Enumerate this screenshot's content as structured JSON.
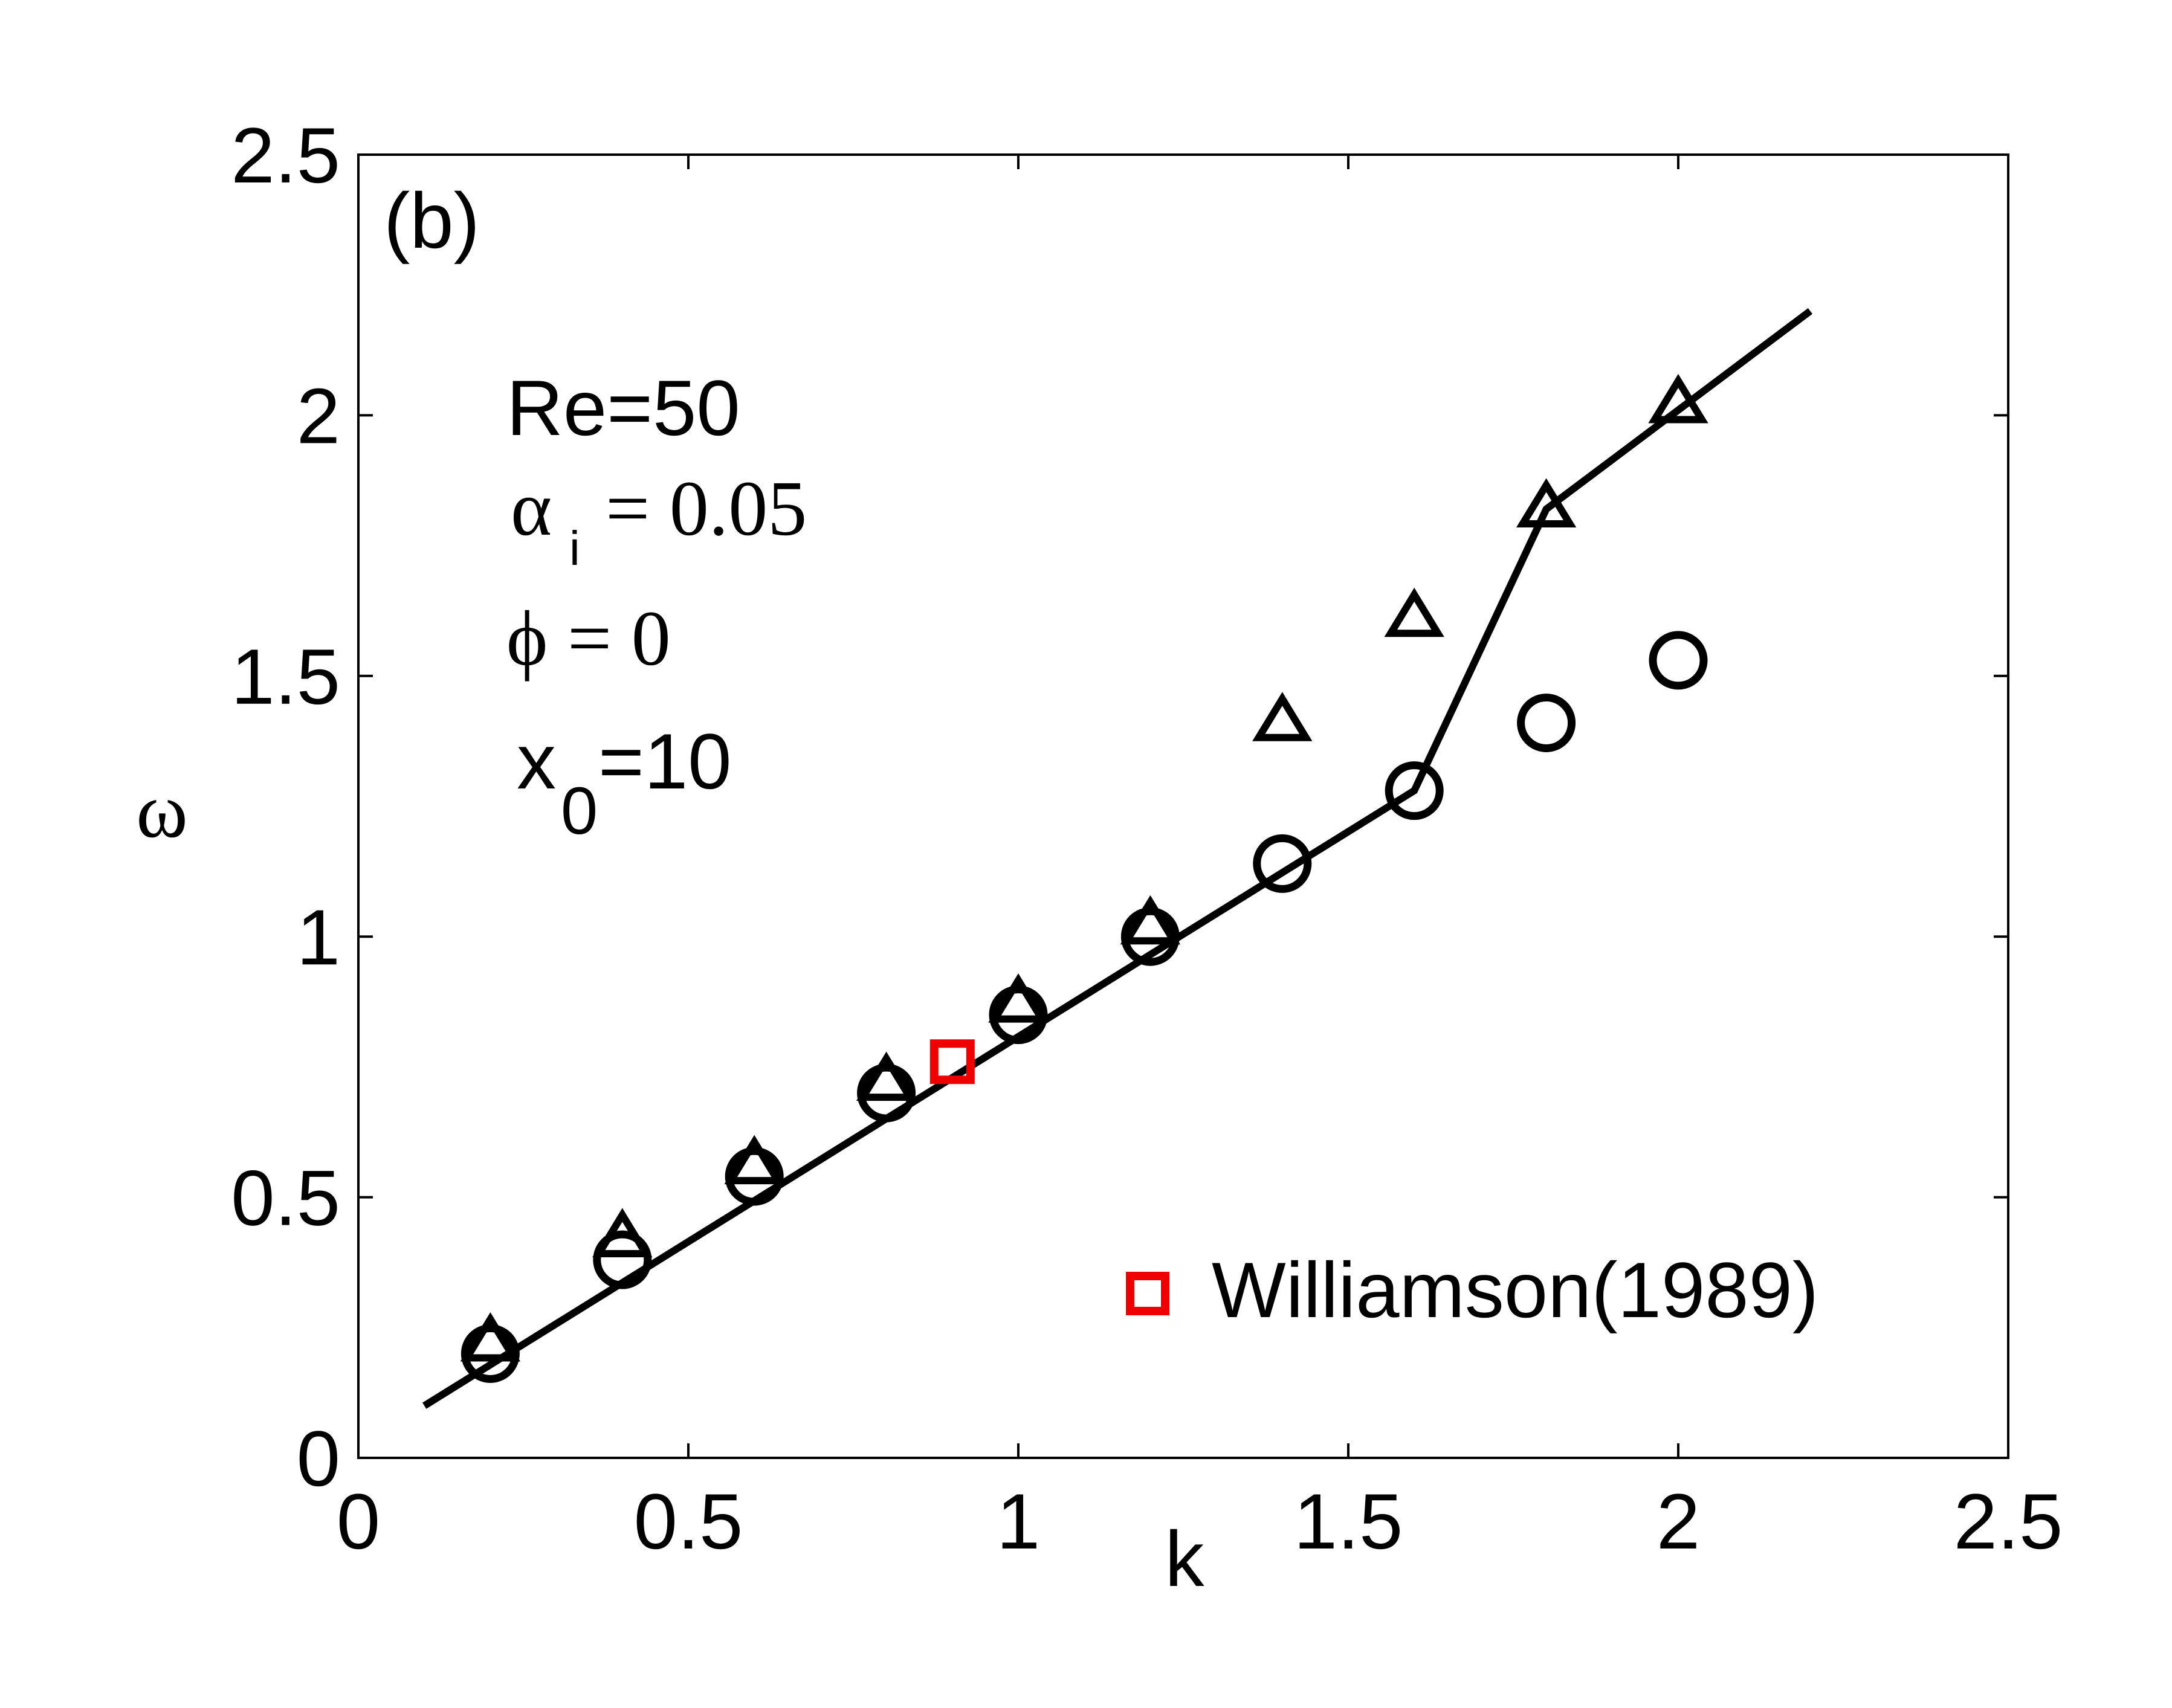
{
  "chart_data": {
    "type": "line",
    "title": "",
    "panel_label": "(b)",
    "xlabel": "k",
    "ylabel": "ω",
    "xlim": [
      0,
      2.5
    ],
    "ylim": [
      0,
      2.5
    ],
    "xticks": [
      {
        "value": 0,
        "label": "0"
      },
      {
        "value": 0.5,
        "label": "0.5"
      },
      {
        "value": 1,
        "label": "1"
      },
      {
        "value": 1.5,
        "label": "1.5"
      },
      {
        "value": 2,
        "label": "2"
      },
      {
        "value": 2.5,
        "label": "2.5"
      }
    ],
    "yticks": [
      {
        "value": 0,
        "label": "0"
      },
      {
        "value": 0.5,
        "label": "0.5"
      },
      {
        "value": 1,
        "label": "1"
      },
      {
        "value": 1.5,
        "label": "1.5"
      },
      {
        "value": 2,
        "label": "2"
      },
      {
        "value": 2.5,
        "label": "2.5"
      }
    ],
    "grid": false,
    "legend_position": "bottom-right",
    "annotations": {
      "re": "Re=50",
      "alpha_symbol": "α",
      "alpha_sub": "i",
      "alpha_value": "= 0.05",
      "phi": "ϕ = 0",
      "x0_symbol": "x",
      "x0_sub": "0",
      "x0_value": "=10"
    },
    "series": [
      {
        "type": "line",
        "color": "#000000",
        "points": [
          [
            0.1,
            0.1
          ],
          [
            1.6,
            1.28
          ],
          [
            1.8,
            1.82
          ],
          [
            2.2,
            2.2
          ]
        ]
      },
      {
        "type": "circle-markers",
        "color": "#000000",
        "points": [
          [
            0.2,
            0.2
          ],
          [
            0.4,
            0.38
          ],
          [
            0.6,
            0.54
          ],
          [
            0.8,
            0.7
          ],
          [
            1.0,
            0.85
          ],
          [
            1.2,
            1.0
          ],
          [
            1.4,
            1.14
          ],
          [
            1.6,
            1.28
          ],
          [
            1.8,
            1.41
          ],
          [
            2.0,
            1.53
          ]
        ]
      },
      {
        "type": "triangle-markers",
        "color": "#000000",
        "points": [
          [
            0.2,
            0.22
          ],
          [
            0.4,
            0.42
          ],
          [
            0.6,
            0.56
          ],
          [
            0.8,
            0.72
          ],
          [
            1.0,
            0.87
          ],
          [
            1.2,
            1.02
          ],
          [
            1.4,
            1.41
          ],
          [
            1.6,
            1.61
          ],
          [
            1.8,
            1.82
          ],
          [
            2.0,
            2.02
          ]
        ]
      },
      {
        "name": "Williamson(1989)",
        "type": "square-markers",
        "color": "#ee0000",
        "points": [
          [
            0.9,
            0.76
          ]
        ]
      }
    ]
  }
}
